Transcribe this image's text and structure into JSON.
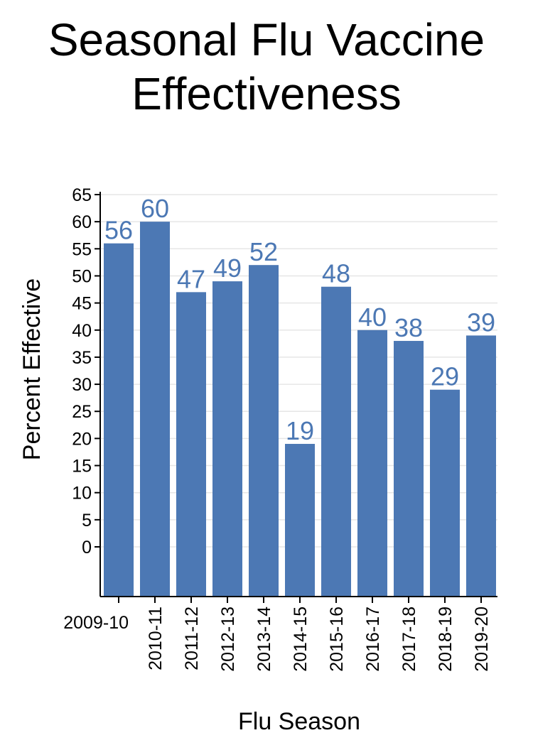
{
  "chart_data": {
    "type": "bar",
    "title_lines": [
      "Seasonal Flu Vaccine",
      "Effectiveness"
    ],
    "xlabel": "Flu Season",
    "ylabel": "Percent Effective",
    "categories": [
      "2009-10",
      "2010-11",
      "2011-12",
      "2012-13",
      "2013-14",
      "2014-15",
      "2015-16",
      "2016-17",
      "2017-18",
      "2018-19",
      "2019-20"
    ],
    "values": [
      56,
      60,
      47,
      49,
      52,
      19,
      48,
      40,
      38,
      29,
      39
    ],
    "y_ticks": [
      0,
      5,
      10,
      15,
      20,
      25,
      30,
      35,
      40,
      45,
      50,
      55,
      60,
      65
    ],
    "ylim": [
      0,
      65
    ],
    "grid": true,
    "legend": "none",
    "colors": {
      "bar": "#4c78b4",
      "label": "#4c78b4",
      "grid": "#e6e6e6",
      "axis": "#000000"
    }
  }
}
